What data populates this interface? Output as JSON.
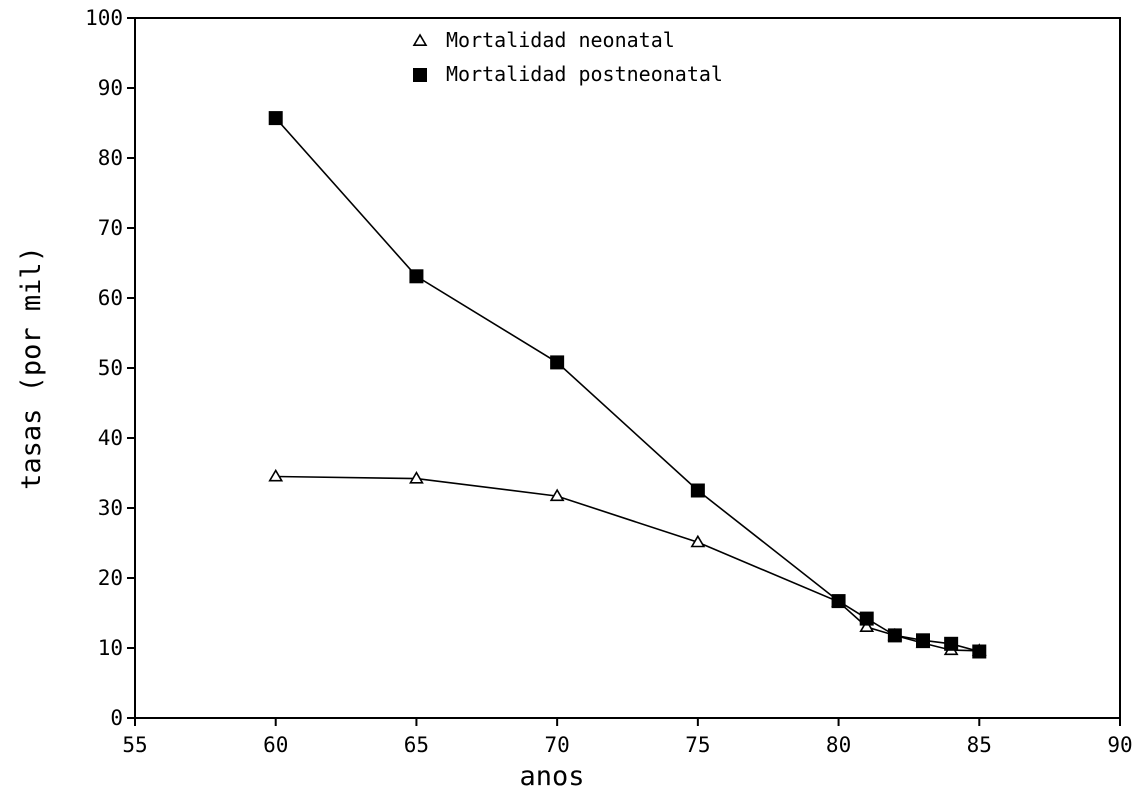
{
  "chart_data": {
    "type": "line",
    "title": "",
    "xlabel": "anos",
    "ylabel": "tasas (por mil)",
    "xlim": [
      55,
      90
    ],
    "ylim": [
      0,
      100
    ],
    "xticks": [
      55,
      60,
      65,
      70,
      75,
      80,
      85,
      90
    ],
    "yticks": [
      0,
      10,
      20,
      30,
      40,
      50,
      60,
      70,
      80,
      90,
      100
    ],
    "grid": false,
    "legend_position": "top-center",
    "series": [
      {
        "name": "Mortalidad neonatal",
        "marker": "open-triangle",
        "color": "#000000",
        "x": [
          60,
          65,
          70,
          75,
          80,
          81,
          82,
          83,
          84,
          85
        ],
        "y": [
          34.5,
          34.2,
          31.7,
          25.1,
          16.6,
          13.0,
          11.8,
          10.7,
          9.7,
          9.6
        ]
      },
      {
        "name": "Mortalidad postneonatal",
        "marker": "filled-square",
        "color": "#000000",
        "x": [
          60,
          65,
          70,
          75,
          80,
          81,
          82,
          83,
          84,
          85
        ],
        "y": [
          85.7,
          63.1,
          50.8,
          32.5,
          16.7,
          14.2,
          11.8,
          11.1,
          10.6,
          9.5
        ]
      }
    ]
  }
}
